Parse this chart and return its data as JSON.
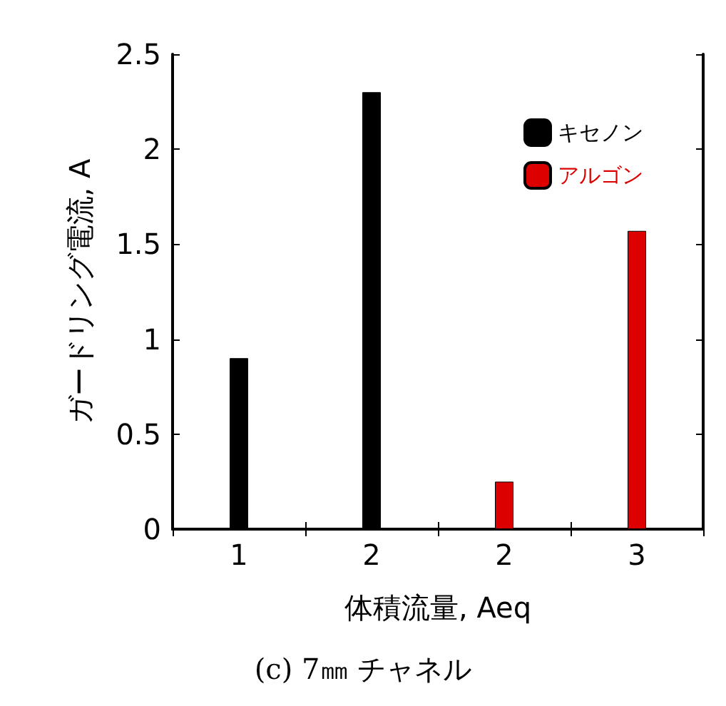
{
  "chart_data": {
    "type": "bar",
    "xlabel": "体積流量, Aeq",
    "ylabel": "ガードリング電流, A",
    "categories": [
      "1",
      "2",
      "2",
      "3"
    ],
    "series": [
      {
        "name": "キセノン",
        "color": "#000000",
        "values": [
          0.9,
          2.3,
          null,
          null
        ]
      },
      {
        "name": "アルゴン",
        "color": "#dd0000",
        "values": [
          null,
          null,
          0.25,
          1.57
        ]
      }
    ],
    "ylim": [
      0,
      2.5
    ],
    "yticks": [
      0,
      0.5,
      1,
      1.5,
      2,
      2.5
    ],
    "grid": false,
    "legend": "top right",
    "annotations": [
      "(c) 7㎜ チャネル"
    ]
  }
}
